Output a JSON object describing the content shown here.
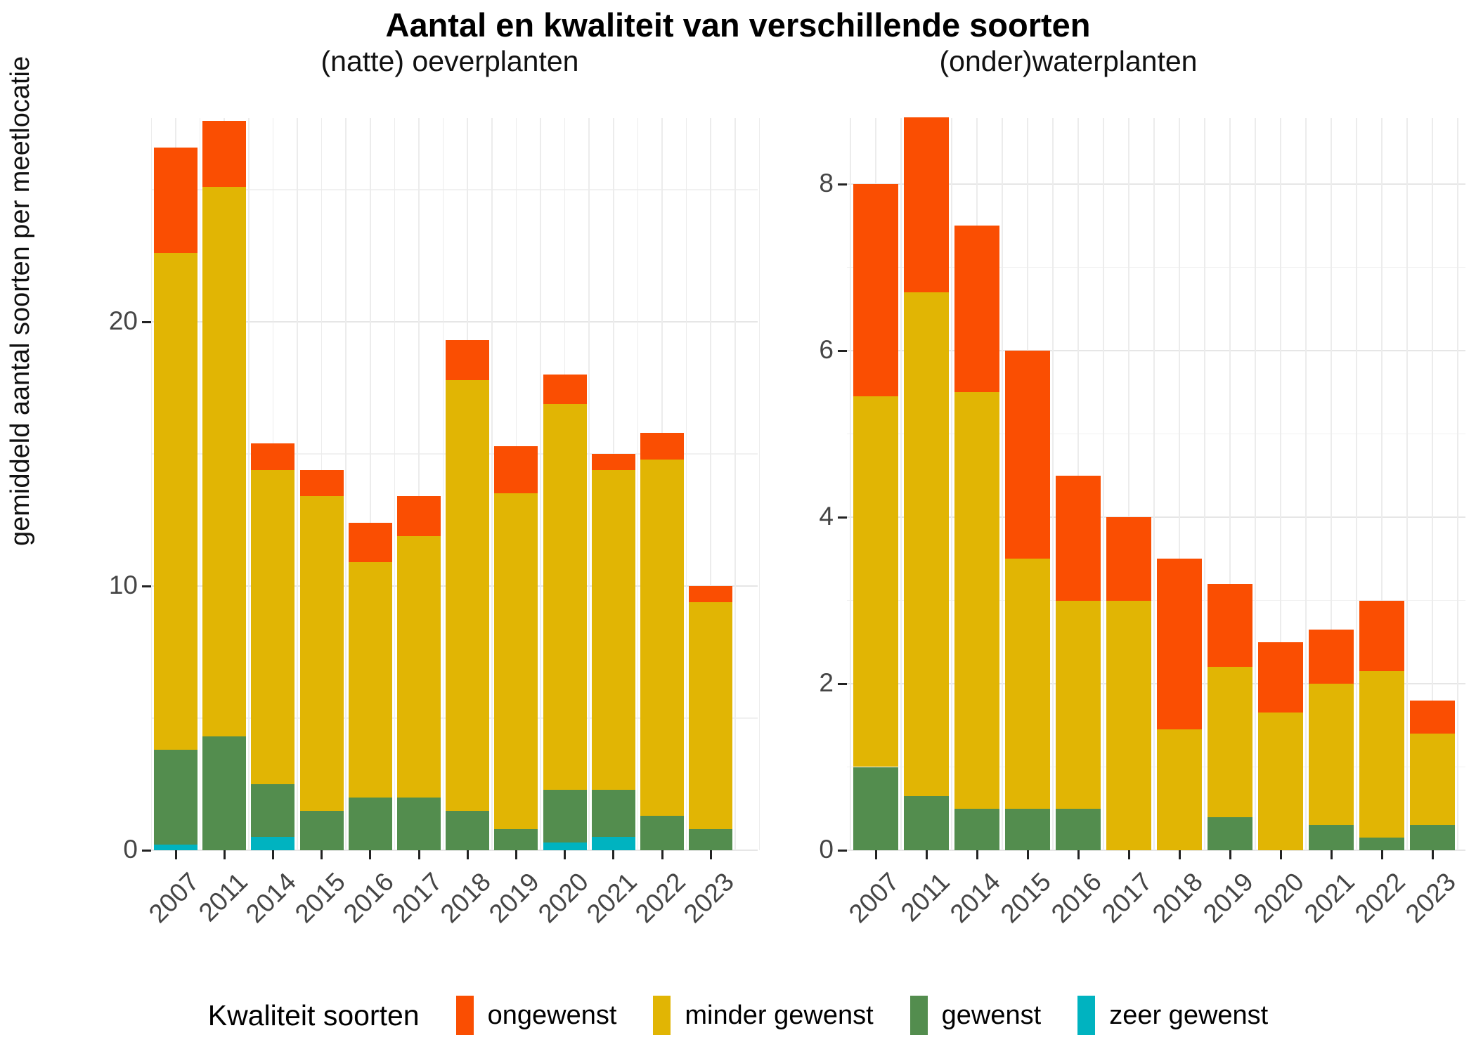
{
  "title": "Aantal en kwaliteit van verschillende soorten",
  "ylabel": "gemiddeld aantal soorten per meetlocatie",
  "legend": {
    "title": "Kwaliteit soorten",
    "items": [
      {
        "label": "ongewenst",
        "color": "#FA4E02"
      },
      {
        "label": "minder gewenst",
        "color": "#E1B504"
      },
      {
        "label": "gewenst",
        "color": "#538D4E"
      },
      {
        "label": "zeer gewenst",
        "color": "#00B3C0"
      }
    ]
  },
  "colors": {
    "ongewenst": "#FA4E02",
    "minder_gewenst": "#E1B504",
    "gewenst": "#538D4E",
    "zeer_gewenst": "#00B3C0",
    "grid_major": "#e6e6e6",
    "grid_minor": "#f1f1f1",
    "axis_text": "#454545"
  },
  "chart_data": [
    {
      "type": "bar",
      "stacked": true,
      "title": "(natte) oeverplanten",
      "categories": [
        "2007",
        "2011",
        "2014",
        "2015",
        "2016",
        "2017",
        "2018",
        "2019",
        "2020",
        "2021",
        "2022",
        "2023"
      ],
      "series": [
        {
          "name": "zeer gewenst",
          "color": "#00B3C0",
          "values": [
            0.2,
            0,
            0.5,
            0,
            0,
            0,
            0,
            0,
            0.3,
            0.5,
            0,
            0
          ]
        },
        {
          "name": "gewenst",
          "color": "#538D4E",
          "values": [
            3.6,
            4.3,
            2.0,
            1.5,
            2.0,
            2.0,
            1.5,
            0.8,
            2.0,
            1.8,
            1.3,
            0.8
          ]
        },
        {
          "name": "minder gewenst",
          "color": "#E1B504",
          "values": [
            18.8,
            20.8,
            11.9,
            11.9,
            8.9,
            9.9,
            16.3,
            12.7,
            14.6,
            12.1,
            13.5,
            8.6
          ]
        },
        {
          "name": "ongewenst",
          "color": "#FA4E02",
          "values": [
            4.0,
            2.5,
            1.0,
            1.0,
            1.5,
            1.5,
            1.5,
            1.8,
            1.1,
            0.6,
            1.0,
            0.6
          ]
        }
      ],
      "totals": [
        26.6,
        27.6,
        15.4,
        14.4,
        12.4,
        13.4,
        19.3,
        15.3,
        18.0,
        15.0,
        15.8,
        10.0
      ],
      "ylim": [
        0,
        27.7
      ],
      "yticks": [
        0,
        10,
        20
      ],
      "yminor": [
        5,
        15,
        25
      ],
      "grid": true,
      "legend_position": "bottom"
    },
    {
      "type": "bar",
      "stacked": true,
      "title": "(onder)waterplanten",
      "categories": [
        "2007",
        "2011",
        "2014",
        "2015",
        "2016",
        "2017",
        "2018",
        "2019",
        "2020",
        "2021",
        "2022",
        "2023"
      ],
      "series": [
        {
          "name": "zeer gewenst",
          "color": "#00B3C0",
          "values": [
            0,
            0,
            0,
            0,
            0,
            0,
            0,
            0,
            0,
            0,
            0,
            0
          ]
        },
        {
          "name": "gewenst",
          "color": "#538D4E",
          "values": [
            1.0,
            0.65,
            0.5,
            0.5,
            0.5,
            0,
            0,
            0.4,
            0,
            0.3,
            0.15,
            0.3
          ]
        },
        {
          "name": "minder gewenst",
          "color": "#E1B504",
          "values": [
            4.45,
            6.05,
            5.0,
            3.0,
            2.5,
            3.0,
            1.45,
            1.8,
            1.65,
            1.7,
            2.0,
            1.1
          ]
        },
        {
          "name": "ongewenst",
          "color": "#FA4E02",
          "values": [
            2.55,
            2.1,
            2.0,
            2.5,
            1.5,
            1.0,
            2.05,
            1.0,
            0.85,
            0.65,
            0.85,
            0.4
          ]
        }
      ],
      "totals": [
        8.0,
        8.8,
        7.5,
        6.0,
        4.5,
        4.0,
        3.5,
        3.2,
        2.5,
        2.65,
        3.0,
        1.8
      ],
      "ylim": [
        0,
        8.8
      ],
      "yticks": [
        0,
        2,
        4,
        6,
        8
      ],
      "yminor": [
        1,
        3,
        5,
        7
      ],
      "grid": true,
      "legend_position": "bottom"
    }
  ]
}
